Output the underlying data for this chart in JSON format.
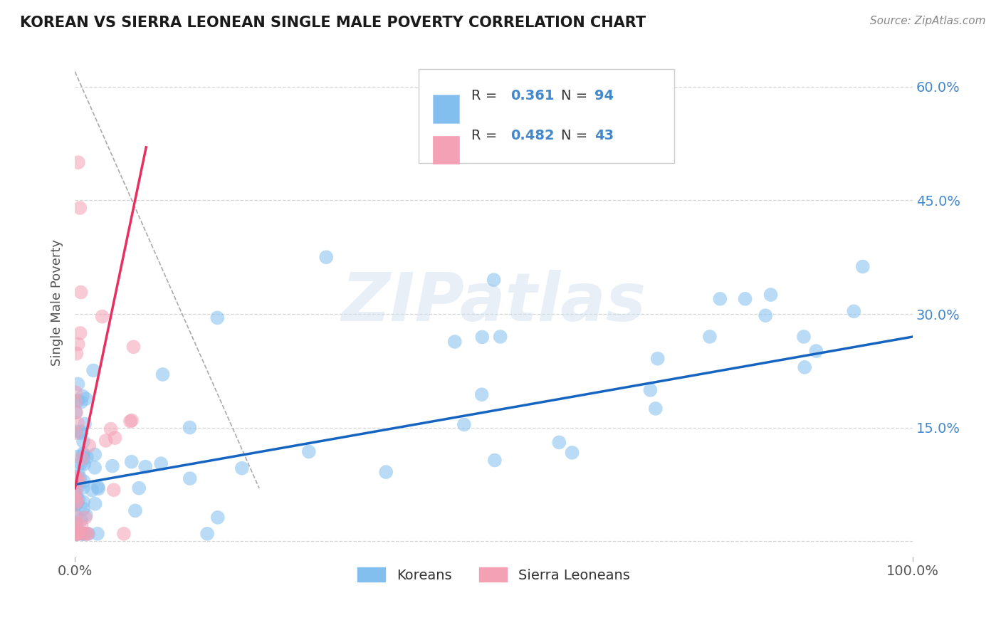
{
  "title": "KOREAN VS SIERRA LEONEAN SINGLE MALE POVERTY CORRELATION CHART",
  "source": "Source: ZipAtlas.com",
  "ylabel": "Single Male Poverty",
  "korean_R": 0.361,
  "korean_N": 94,
  "sierraleonean_R": 0.482,
  "sierraleonean_N": 43,
  "korean_color": "#82bfef",
  "sierraleonean_color": "#f4a0b5",
  "korean_trend_color": "#1565c0",
  "sierraleonean_trend_color": "#e83060",
  "sierraleonean_dash_color": "#aaaaaa",
  "background_color": "#ffffff",
  "grid_color": "#cccccc",
  "watermark_text": "ZIPatlas",
  "tick_color": "#4488cc",
  "legend_label1": "Koreans",
  "legend_label2": "Sierra Leoneans",
  "xlim": [
    0.0,
    1.0
  ],
  "ylim": [
    -0.02,
    0.65
  ],
  "yticks": [
    0.0,
    0.15,
    0.3,
    0.45,
    0.6
  ],
  "xticks": [
    0.0,
    1.0
  ]
}
